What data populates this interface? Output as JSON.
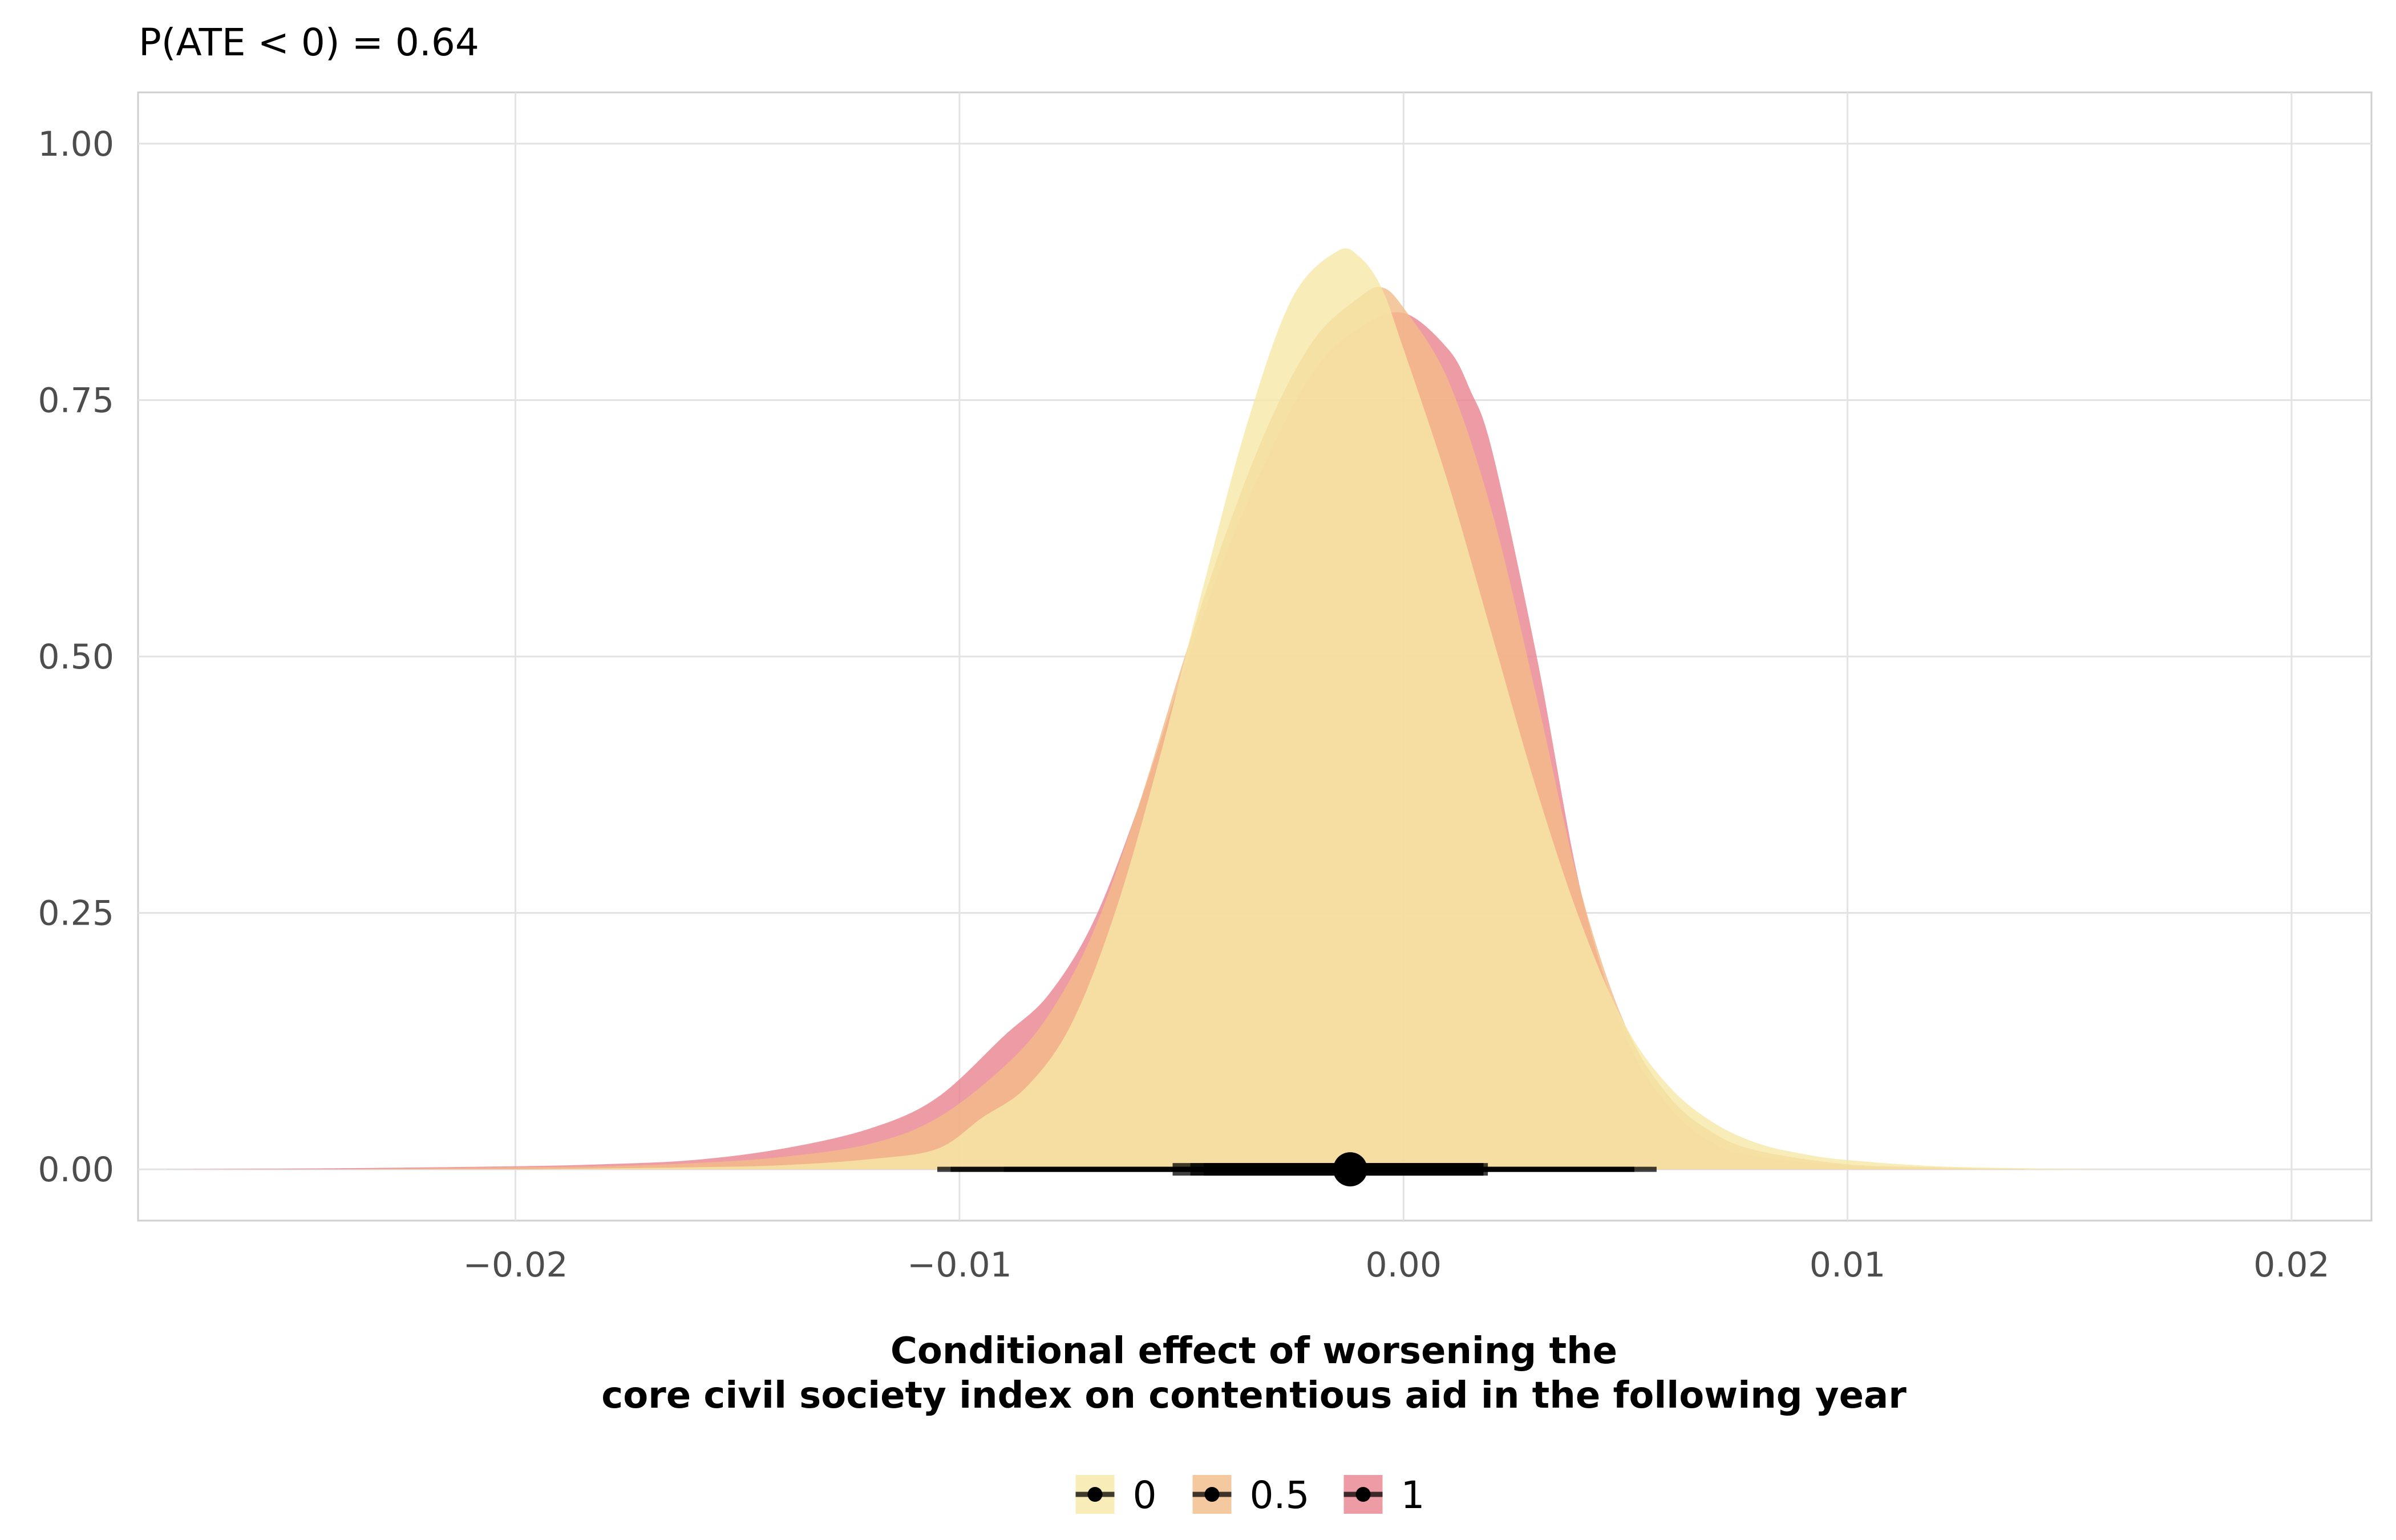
{
  "chart_data": {
    "type": "area",
    "title": "P(ATE < 0) = 0.64",
    "xlabel_lines": [
      "Conditional effect of worsening the",
      "core civil society index on contentious aid in the following year"
    ],
    "ylabel": "",
    "xlim": [
      -0.0285,
      0.0218
    ],
    "ylim": [
      -0.05,
      1.05
    ],
    "x_ticks": [
      -0.02,
      -0.01,
      0.0,
      0.01,
      0.02
    ],
    "x_tick_labels": [
      "−0.02",
      "−0.01",
      "0.00",
      "0.01",
      "0.02"
    ],
    "y_ticks": [
      0.0,
      0.25,
      0.5,
      0.75,
      1.0
    ],
    "y_tick_labels": [
      "0.00",
      "0.25",
      "0.50",
      "0.75",
      "1.00"
    ],
    "grid": true,
    "legend_position": "bottom",
    "series": [
      {
        "name": "1",
        "color": "#e8838f",
        "density": [
          [
            -0.028,
            0.0
          ],
          [
            -0.024,
            0.001
          ],
          [
            -0.02,
            0.003
          ],
          [
            -0.018,
            0.005
          ],
          [
            -0.016,
            0.009
          ],
          [
            -0.014,
            0.02
          ],
          [
            -0.012,
            0.04
          ],
          [
            -0.0105,
            0.07
          ],
          [
            -0.009,
            0.13
          ],
          [
            -0.008,
            0.17
          ],
          [
            -0.007,
            0.24
          ],
          [
            -0.006,
            0.35
          ],
          [
            -0.005,
            0.48
          ],
          [
            -0.004,
            0.6
          ],
          [
            -0.003,
            0.7
          ],
          [
            -0.002,
            0.78
          ],
          [
            -0.001,
            0.82
          ],
          [
            0.0,
            0.835
          ],
          [
            0.001,
            0.8
          ],
          [
            0.0015,
            0.76
          ],
          [
            0.002,
            0.7
          ],
          [
            0.003,
            0.5
          ],
          [
            0.004,
            0.27
          ],
          [
            0.005,
            0.13
          ],
          [
            0.006,
            0.06
          ],
          [
            0.007,
            0.025
          ],
          [
            0.008,
            0.012
          ],
          [
            0.01,
            0.004
          ],
          [
            0.012,
            0.001
          ],
          [
            0.014,
            0.0
          ]
        ],
        "interval": {
          "point": -0.0012,
          "inner": [
            -0.0045,
            0.0018
          ],
          "outer": [
            -0.0102,
            0.0057
          ]
        }
      },
      {
        "name": "0.5",
        "color": "#f3bb87",
        "density": [
          [
            -0.024,
            0.0
          ],
          [
            -0.02,
            0.002
          ],
          [
            -0.018,
            0.003
          ],
          [
            -0.016,
            0.006
          ],
          [
            -0.014,
            0.012
          ],
          [
            -0.012,
            0.025
          ],
          [
            -0.0105,
            0.05
          ],
          [
            -0.009,
            0.1
          ],
          [
            -0.008,
            0.15
          ],
          [
            -0.007,
            0.23
          ],
          [
            -0.006,
            0.35
          ],
          [
            -0.005,
            0.49
          ],
          [
            -0.004,
            0.62
          ],
          [
            -0.003,
            0.73
          ],
          [
            -0.002,
            0.81
          ],
          [
            -0.001,
            0.85
          ],
          [
            -0.0005,
            0.86
          ],
          [
            0.0,
            0.84
          ],
          [
            0.001,
            0.77
          ],
          [
            0.002,
            0.64
          ],
          [
            0.003,
            0.46
          ],
          [
            0.004,
            0.27
          ],
          [
            0.005,
            0.14
          ],
          [
            0.006,
            0.07
          ],
          [
            0.007,
            0.035
          ],
          [
            0.008,
            0.018
          ],
          [
            0.01,
            0.005
          ],
          [
            0.012,
            0.002
          ],
          [
            0.014,
            0.0
          ]
        ],
        "interval": {
          "point": -0.0012,
          "inner": [
            -0.0048,
            0.0019
          ],
          "outer": [
            -0.0105,
            0.0052
          ]
        }
      },
      {
        "name": "0",
        "color": "#f6e7a6",
        "density": [
          [
            -0.02,
            0.0
          ],
          [
            -0.016,
            0.002
          ],
          [
            -0.014,
            0.004
          ],
          [
            -0.012,
            0.01
          ],
          [
            -0.0105,
            0.02
          ],
          [
            -0.0095,
            0.05
          ],
          [
            -0.0085,
            0.08
          ],
          [
            -0.0075,
            0.14
          ],
          [
            -0.0065,
            0.25
          ],
          [
            -0.0055,
            0.4
          ],
          [
            -0.0045,
            0.57
          ],
          [
            -0.0035,
            0.73
          ],
          [
            -0.0025,
            0.85
          ],
          [
            -0.0015,
            0.895
          ],
          [
            -0.001,
            0.89
          ],
          [
            -0.0005,
            0.86
          ],
          [
            0.0,
            0.8
          ],
          [
            0.001,
            0.67
          ],
          [
            0.002,
            0.52
          ],
          [
            0.003,
            0.37
          ],
          [
            0.004,
            0.24
          ],
          [
            0.005,
            0.14
          ],
          [
            0.006,
            0.08
          ],
          [
            0.007,
            0.045
          ],
          [
            0.008,
            0.025
          ],
          [
            0.009,
            0.015
          ],
          [
            0.01,
            0.009
          ],
          [
            0.012,
            0.003
          ],
          [
            0.014,
            0.001
          ],
          [
            0.016,
            0.0
          ]
        ],
        "interval": {
          "point": -0.0012,
          "inner": [
            -0.0052,
            0.0018
          ],
          "outer": [
            -0.009,
            0.0052
          ]
        }
      }
    ],
    "series_opacity": 0.8
  }
}
